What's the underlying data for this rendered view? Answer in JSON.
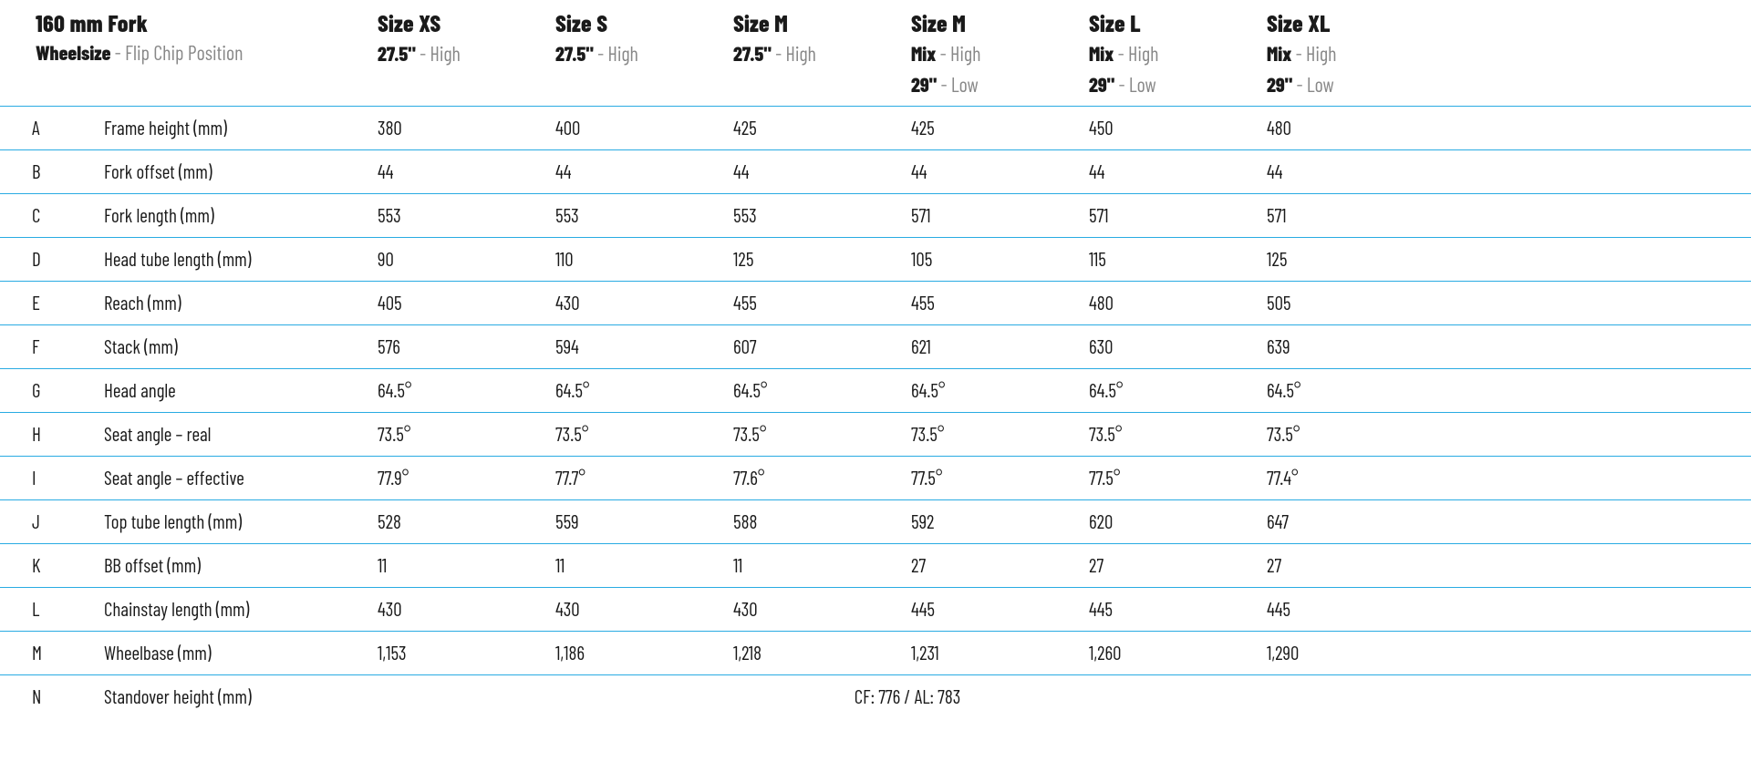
{
  "colors": {
    "border": "#29abe2",
    "text": "#1a1a1a",
    "muted": "#888888",
    "background": "#ffffff"
  },
  "header": {
    "title": "160 mm Fork",
    "subtitle_bold": "Wheelsize",
    "subtitle_light": " - Flip Chip Position",
    "sizes": [
      {
        "label": "Size XS",
        "lines": [
          {
            "b": "27.5\"",
            "l": " - High"
          }
        ]
      },
      {
        "label": "Size S",
        "lines": [
          {
            "b": "27.5\"",
            "l": " - High"
          }
        ]
      },
      {
        "label": "Size M",
        "lines": [
          {
            "b": "27.5\"",
            "l": " - High"
          }
        ]
      },
      {
        "label": "Size M",
        "lines": [
          {
            "b": "Mix",
            "l": " - High"
          },
          {
            "b": "29\"",
            "l": " - Low"
          }
        ]
      },
      {
        "label": "Size L",
        "lines": [
          {
            "b": "Mix",
            "l": " - High"
          },
          {
            "b": "29\"",
            "l": " - Low"
          }
        ]
      },
      {
        "label": "Size XL",
        "lines": [
          {
            "b": "Mix",
            "l": " - High"
          },
          {
            "b": "29\"",
            "l": " - Low"
          }
        ]
      }
    ]
  },
  "rows": [
    {
      "letter": "A",
      "label": "Frame height (mm)",
      "v": [
        "380",
        "400",
        "425",
        "425",
        "450",
        "480"
      ]
    },
    {
      "letter": "B",
      "label": "Fork offset (mm)",
      "v": [
        "44",
        "44",
        "44",
        "44",
        "44",
        "44"
      ]
    },
    {
      "letter": "C",
      "label": "Fork length (mm)",
      "v": [
        "553",
        "553",
        "553",
        "571",
        "571",
        "571"
      ]
    },
    {
      "letter": "D",
      "label": "Head tube length (mm)",
      "v": [
        "90",
        "110",
        "125",
        "105",
        "115",
        "125"
      ]
    },
    {
      "letter": "E",
      "label": "Reach (mm)",
      "v": [
        "405",
        "430",
        "455",
        "455",
        "480",
        "505"
      ]
    },
    {
      "letter": "F",
      "label": "Stack (mm)",
      "v": [
        "576",
        "594",
        "607",
        "621",
        "630",
        "639"
      ]
    },
    {
      "letter": "G",
      "label": "Head angle",
      "v": [
        "64.5°",
        "64.5°",
        "64.5°",
        "64.5°",
        "64.5°",
        "64.5°"
      ]
    },
    {
      "letter": "H",
      "label": "Seat angle – real",
      "v": [
        "73.5°",
        "73.5°",
        "73.5°",
        "73.5°",
        "73.5°",
        "73.5°"
      ]
    },
    {
      "letter": "I",
      "label": "Seat angle – effective",
      "v": [
        "77.9°",
        "77.7°",
        "77.6°",
        "77.5°",
        "77.5°",
        "77.4°"
      ]
    },
    {
      "letter": "J",
      "label": "Top tube length (mm)",
      "v": [
        "528",
        "559",
        "588",
        "592",
        "620",
        "647"
      ]
    },
    {
      "letter": "K",
      "label": "BB offset (mm)",
      "v": [
        "11",
        "11",
        "11",
        "27",
        "27",
        "27"
      ]
    },
    {
      "letter": "L",
      "label": "Chainstay length (mm)",
      "v": [
        "430",
        "430",
        "430",
        "445",
        "445",
        "445"
      ]
    },
    {
      "letter": "M",
      "label": "Wheelbase (mm)",
      "v": [
        "1,153",
        "1,186",
        "1,218",
        "1,231",
        "1,260",
        "1,290"
      ]
    }
  ],
  "span_row": {
    "letter": "N",
    "label": "Standover height (mm)",
    "value": "CF: 776 / AL: 783"
  }
}
